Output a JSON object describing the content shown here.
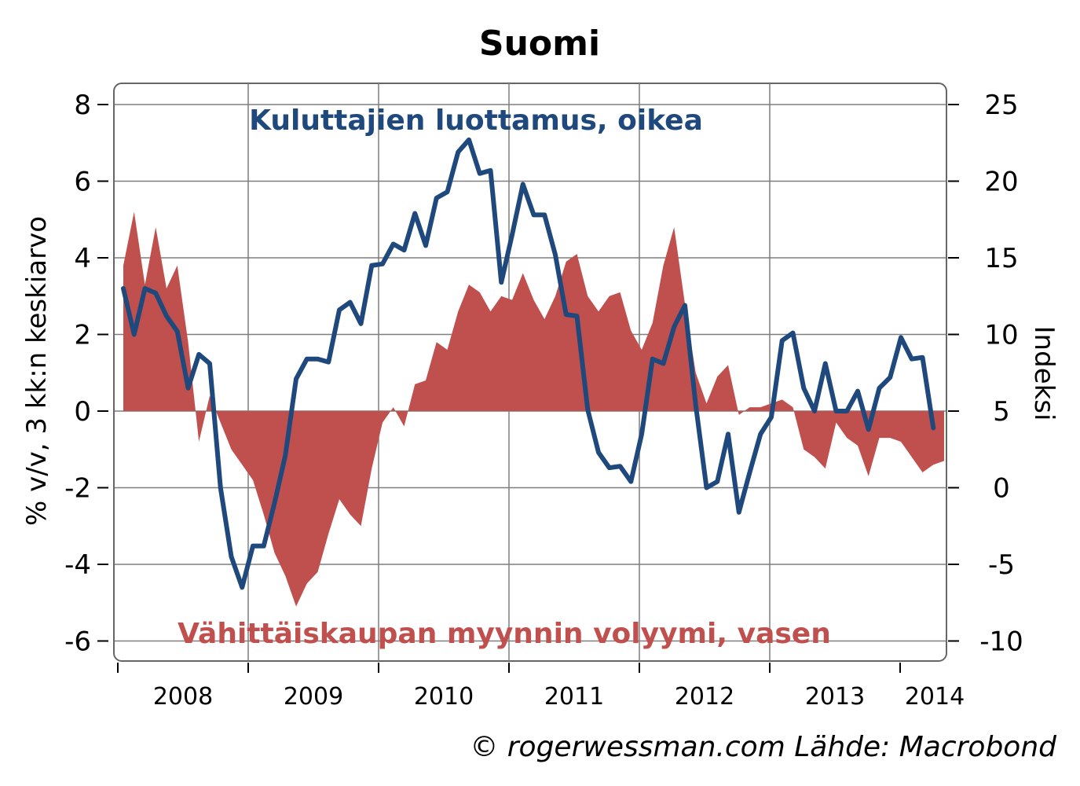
{
  "chart_data": {
    "type": "area+line",
    "title": "Suomi",
    "ylabel_left": "% v/v, 3 kk:n keskiarvo",
    "ylabel_right": "Indeksi",
    "ylim_left": [
      -6.5,
      8.5
    ],
    "ylim_right": [
      -11.25,
      26.25
    ],
    "yticks_left": [
      "8",
      "6",
      "4",
      "2",
      "0",
      "-2",
      "-4",
      "-6"
    ],
    "yticks_right": [
      "25",
      "20",
      "15",
      "10",
      "5",
      "0",
      "-5",
      "-10"
    ],
    "yticks_left_values": [
      8,
      6,
      4,
      2,
      0,
      -2,
      -4,
      -6
    ],
    "yticks_right_values": [
      25,
      20,
      15,
      10,
      5,
      0,
      -5,
      -10
    ],
    "xticks": [
      "2008",
      "2009",
      "2010",
      "2011",
      "2012",
      "2013",
      "2014"
    ],
    "grid": true,
    "colors": {
      "retail": "#c0504d",
      "confidence": "#1f497d",
      "grid": "#7f7f7f"
    },
    "x_start": "2007-12",
    "series": [
      {
        "name": "Vähittäiskaupan myynnin volyymi, vasen",
        "axis": "left",
        "type": "area",
        "values": [
          3.8,
          5.2,
          3.3,
          4.8,
          3.2,
          3.8,
          1.8,
          -0.8,
          0.4,
          -0.3,
          -1.0,
          -1.4,
          -1.8,
          -2.7,
          -3.7,
          -4.3,
          -5.1,
          -4.5,
          -4.2,
          -3.2,
          -2.3,
          -2.7,
          -3.0,
          -1.5,
          -0.3,
          0.1,
          -0.4,
          0.7,
          0.8,
          1.8,
          1.6,
          2.6,
          3.3,
          3.1,
          2.6,
          3.0,
          2.9,
          3.6,
          2.9,
          2.4,
          3.0,
          3.9,
          4.1,
          3.0,
          2.6,
          3.0,
          3.1,
          2.1,
          1.6,
          2.3,
          3.8,
          4.8,
          2.8,
          1.0,
          0.2,
          0.9,
          1.2,
          -0.1,
          0.1,
          0.1,
          0.2,
          0.3,
          0.1,
          -1.0,
          -1.2,
          -1.5,
          -0.3,
          -0.7,
          -0.9,
          -1.7,
          -0.7,
          -0.7,
          -0.8,
          -1.2,
          -1.6,
          -1.4,
          -1.3
        ]
      },
      {
        "name": "Kuluttajien luottamus, oikea",
        "axis": "right",
        "type": "line",
        "values": [
          13.0,
          10.0,
          13.0,
          12.7,
          11.2,
          10.2,
          6.5,
          8.7,
          8.1,
          0.0,
          -4.5,
          -6.5,
          -3.8,
          -3.8,
          -1.0,
          2.1,
          7.1,
          8.4,
          8.4,
          8.2,
          11.6,
          12.1,
          10.7,
          14.5,
          14.6,
          15.9,
          15.5,
          17.9,
          15.8,
          18.9,
          19.3,
          21.9,
          22.7,
          20.5,
          20.7,
          13.4,
          16.5,
          19.8,
          17.8,
          17.8,
          15.2,
          11.3,
          11.2,
          5.1,
          2.3,
          1.3,
          1.4,
          0.4,
          3.5,
          8.4,
          8.1,
          10.5,
          11.9,
          5.4,
          0.0,
          0.4,
          3.5,
          -1.6,
          1.0,
          3.5,
          4.6,
          9.6,
          10.1,
          6.5,
          5.0,
          8.1,
          5.0,
          5.0,
          6.3,
          3.8,
          6.5,
          7.2,
          9.8,
          8.4,
          8.5,
          3.9
        ]
      }
    ]
  },
  "annotations": {
    "confidence_label": "Kuluttajien luottamus, oikea",
    "retail_label": "Vähittäiskaupan myynnin volyymi, vasen"
  },
  "credit": "© rogerwessman.com Lähde: Macrobond"
}
